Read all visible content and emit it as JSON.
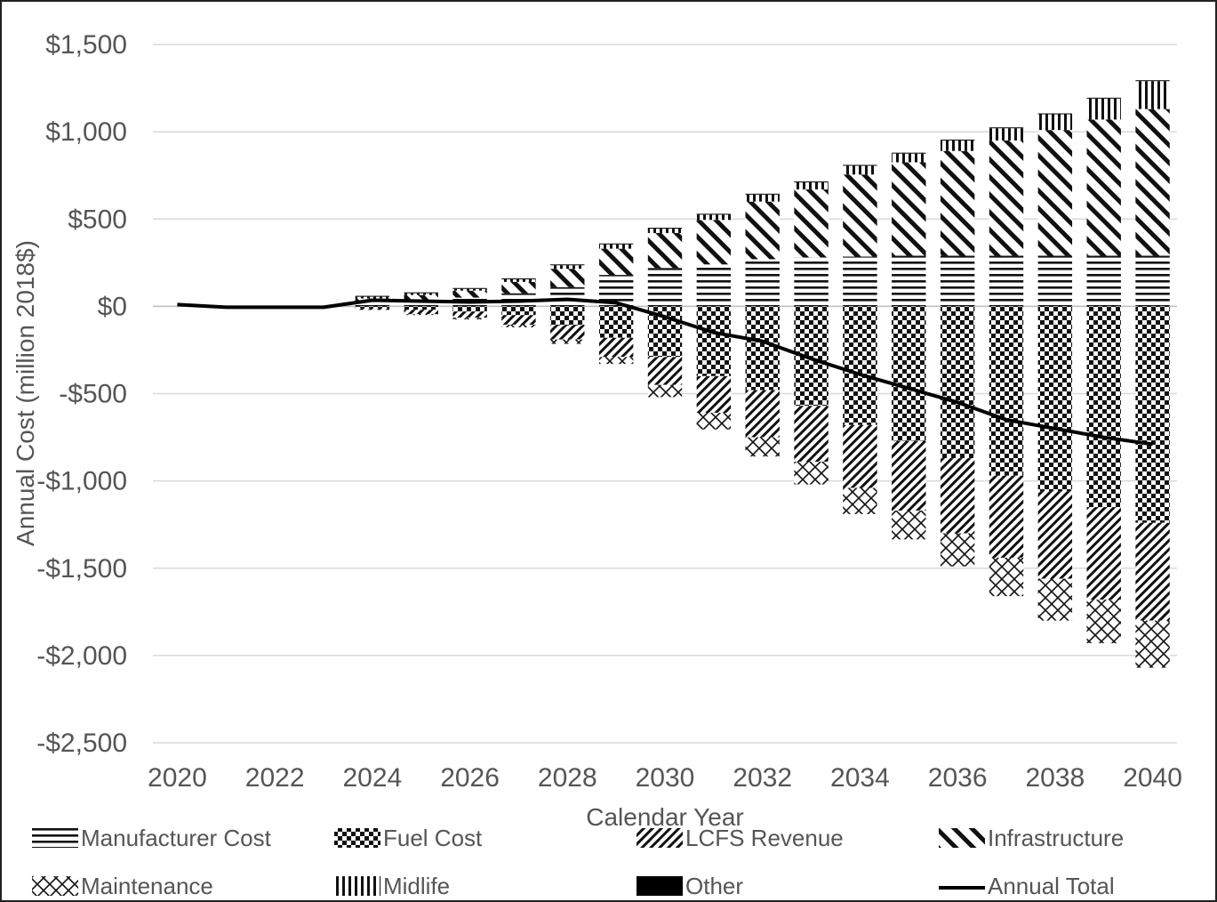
{
  "chart_data": {
    "type": "bar",
    "stacked": true,
    "title": "",
    "xlabel": "Calendar Year",
    "ylabel": "Annual Cost (million 2018$)",
    "ylim": [
      -2500,
      1500
    ],
    "yticks": [
      1500,
      1000,
      500,
      0,
      -500,
      -1000,
      -1500,
      -2000,
      -2500
    ],
    "ytick_labels": [
      "$1,500",
      "$1,000",
      "$500",
      "$0",
      "-$500",
      "-$1,000",
      "-$1,500",
      "-$2,000",
      "-$2,500"
    ],
    "xtick_labels": [
      "2020",
      "2022",
      "2024",
      "2026",
      "2028",
      "2030",
      "2032",
      "2034",
      "2036",
      "2038",
      "2040"
    ],
    "grid": true,
    "legend_position": "bottom",
    "categories": [
      "2020",
      "2021",
      "2022",
      "2023",
      "2024",
      "2025",
      "2026",
      "2027",
      "2028",
      "2029",
      "2030",
      "2031",
      "2032",
      "2033",
      "2034",
      "2035",
      "2036",
      "2037",
      "2038",
      "2039",
      "2040"
    ],
    "series": [
      {
        "name": "Manufacturer Cost",
        "pattern": "hlines",
        "values": [
          0,
          0,
          0,
          0,
          25,
          35,
          50,
          75,
          110,
          180,
          220,
          240,
          270,
          280,
          285,
          290,
          290,
          290,
          290,
          290,
          290
        ]
      },
      {
        "name": "Fuel Cost",
        "pattern": "checker",
        "values": [
          0,
          0,
          0,
          0,
          -10,
          -20,
          -30,
          -50,
          -110,
          -180,
          -290,
          -400,
          -480,
          -570,
          -680,
          -770,
          -870,
          -970,
          -1060,
          -1150,
          -1240
        ]
      },
      {
        "name": "LCFS Revenue",
        "pattern": "fwd-diag",
        "values": [
          0,
          0,
          0,
          0,
          -10,
          -25,
          -35,
          -55,
          -80,
          -110,
          -160,
          -210,
          -270,
          -320,
          -360,
          -400,
          -430,
          -470,
          -500,
          -530,
          -560
        ]
      },
      {
        "name": "Infrastructure",
        "pattern": "back-diag",
        "values": [
          0,
          0,
          0,
          0,
          20,
          30,
          40,
          65,
          105,
          150,
          200,
          255,
          330,
          390,
          470,
          535,
          600,
          660,
          720,
          780,
          840
        ]
      },
      {
        "name": "Maintenance",
        "pattern": "crosshatch",
        "values": [
          0,
          0,
          0,
          0,
          0,
          -5,
          -10,
          -15,
          -25,
          -40,
          -70,
          -95,
          -110,
          -130,
          -150,
          -165,
          -190,
          -220,
          -240,
          -250,
          -270
        ]
      },
      {
        "name": "Midlife",
        "pattern": "vlines",
        "values": [
          0,
          0,
          0,
          0,
          10,
          10,
          10,
          15,
          20,
          25,
          25,
          30,
          40,
          40,
          50,
          50,
          60,
          70,
          90,
          120,
          160
        ]
      },
      {
        "name": "Other",
        "pattern": "solid",
        "values": [
          0,
          0,
          0,
          0,
          5,
          5,
          5,
          5,
          5,
          5,
          5,
          5,
          5,
          5,
          5,
          5,
          5,
          5,
          5,
          5,
          5
        ]
      },
      {
        "name": "Annual Total",
        "type": "line",
        "values": [
          10,
          -5,
          -5,
          -5,
          35,
          30,
          25,
          30,
          40,
          20,
          -60,
          -150,
          -200,
          -300,
          -390,
          -470,
          -550,
          -650,
          -700,
          -750,
          -790
        ]
      }
    ]
  }
}
